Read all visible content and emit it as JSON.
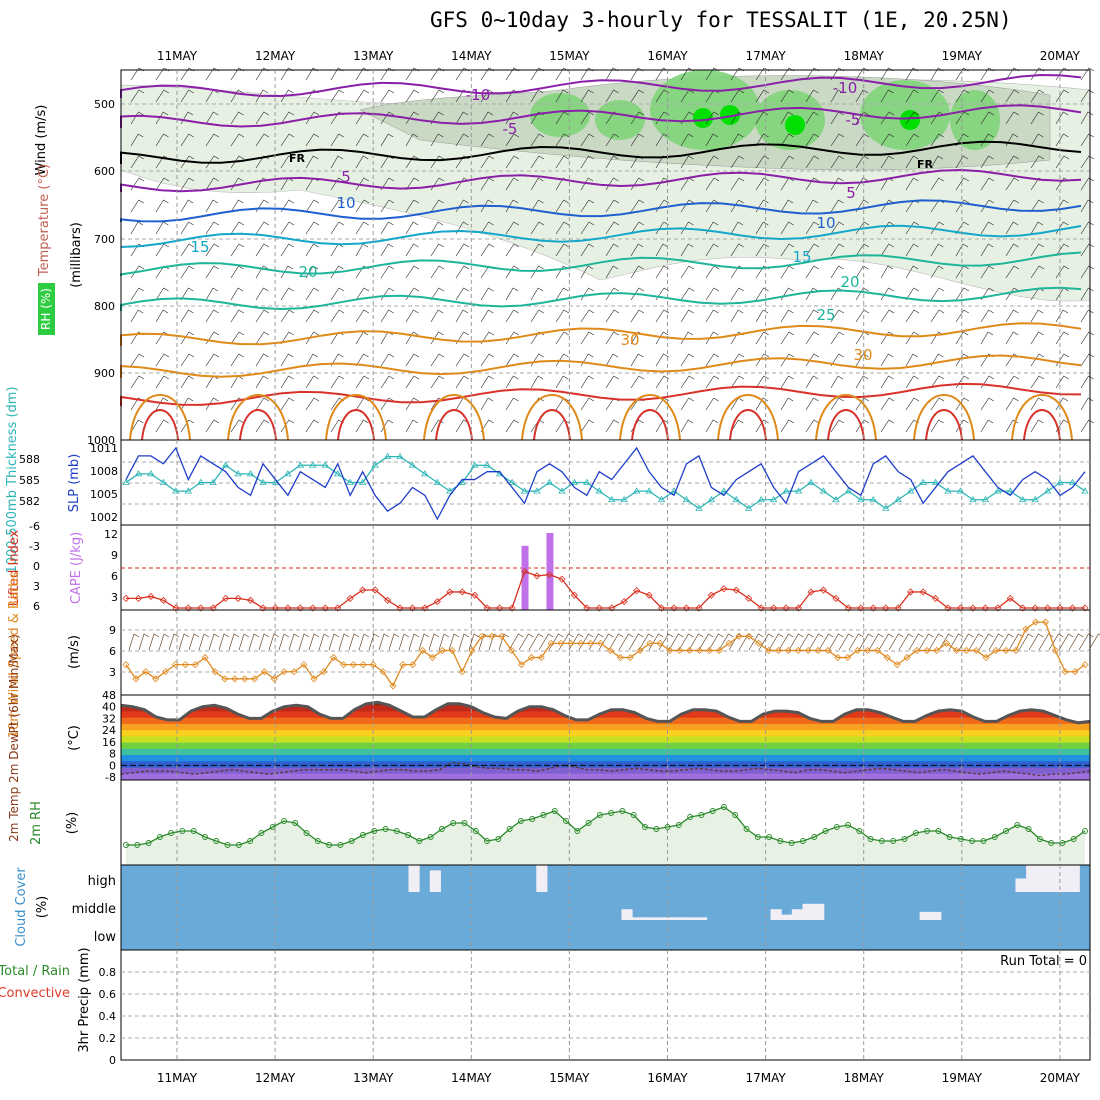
{
  "title": "GFS 0~10day 3-hourly for TESSALIT (1E, 20.25N)",
  "days": [
    "11MAY",
    "12MAY",
    "13MAY",
    "14MAY",
    "15MAY",
    "16MAY",
    "17MAY",
    "18MAY",
    "19MAY",
    "20MAY"
  ],
  "colors": {
    "rh_green": "#2ecc40",
    "temp_purple": "#8a1fa8",
    "temp_blue": "#1f5fd0",
    "temp_cyan": "#14a7c9",
    "temp_teal": "#1fb59a",
    "temp_orange": "#e08a1a",
    "temp_red": "#d8312b",
    "slp": "#1f3fc8",
    "thickness": "#2cb5b5",
    "lifted": "#d83020",
    "cape": "#c070e8",
    "wind10": "#e08a20",
    "rh2m": "#2a8a2a",
    "cloud": "#6aaad8",
    "cloud_fill": "#f2eef6"
  },
  "panels": {
    "upper": {
      "ylabel_wind": "Wind (m/s)",
      "ylabel_temp": "Temperature (°C)",
      "ylabel_rh": "RH (%)",
      "ylabel_unit": "(millibars)",
      "ticks": [
        "500",
        "600",
        "700",
        "800",
        "900",
        "1000"
      ],
      "contour_labels": [
        "-10",
        "-5",
        "FR",
        "5",
        "10",
        "15",
        "20",
        "25",
        "30",
        "-10",
        "-5",
        "FR",
        "5",
        "10",
        "15",
        "20",
        "30"
      ]
    },
    "slp": {
      "ylabel_left": "1000-500mb Thickness (dm)",
      "ylabel_right": "SLP (mb)",
      "left_ticks": [
        "588",
        "585",
        "582"
      ],
      "right_ticks": [
        "1011",
        "1008",
        "1005",
        "1002"
      ]
    },
    "cape": {
      "ylabel_left": "Lifted Index",
      "ylabel_right": "CAPE (J/kg)",
      "left_ticks": [
        "-6",
        "-3",
        "0",
        "3",
        "6"
      ],
      "right_ticks": [
        "12",
        "9",
        "6",
        "3"
      ]
    },
    "wind10": {
      "ylabel_left": "10m Wind Speed & Barbs",
      "ylabel_unit": "(m/s)",
      "ticks": [
        "9",
        "6",
        "3"
      ]
    },
    "temp2m": {
      "ylabel_left": "2m Temp 2m DewPt (6hr Min/Max)",
      "ylabel_unit": "(°C)",
      "ticks": [
        "48",
        "40",
        "32",
        "24",
        "16",
        "8",
        "0",
        "-8"
      ]
    },
    "rh2m": {
      "ylabel_left": "2m RH",
      "ylabel_unit": "(%)"
    },
    "cloud": {
      "ylabel_left": "Cloud Cover",
      "ylabel_unit": "(%)",
      "levels": [
        "high",
        "middle",
        "low"
      ]
    },
    "precip": {
      "ylabel_left": "3hr Precip (mm)",
      "ylabel_total": "Total / Rain",
      "ylabel_conv": "Convective",
      "ticks": [
        "0.8",
        "0.6",
        "0.4",
        "0.2",
        "0"
      ],
      "run_total": "Run Total = 0"
    }
  },
  "chart_data": [
    {
      "type": "line",
      "title": "SLP (mb)",
      "series": [
        {
          "name": "SLP (mb)",
          "values": [
            1007,
            1010,
            1010,
            1009,
            1011,
            1007,
            1010,
            1009,
            1008,
            1006,
            1005,
            1009,
            1007,
            1005,
            1008,
            1007,
            1006,
            1009,
            1005,
            1008,
            1005,
            1003,
            1004,
            1006,
            1005,
            1002,
            1005,
            1007,
            1007,
            1008,
            1008,
            1006,
            1004,
            1008,
            1009,
            1008,
            1006,
            1005,
            1008,
            1007,
            1009,
            1011,
            1008,
            1006,
            1005,
            1009,
            1010,
            1006,
            1005,
            1007,
            1008,
            1009,
            1006,
            1004,
            1008,
            1009,
            1010,
            1008,
            1006,
            1005,
            1009,
            1010,
            1008,
            1007,
            1004,
            1006,
            1008,
            1009,
            1010,
            1008,
            1006,
            1005,
            1007,
            1008,
            1007,
            1005,
            1006,
            1008
          ]
        },
        {
          "name": "1000-500mb Thickness (dm)",
          "values": [
            585,
            586,
            586,
            585,
            584,
            584,
            585,
            585,
            587,
            586,
            586,
            585,
            585,
            586,
            587,
            587,
            587,
            586,
            585,
            585,
            587,
            588,
            588,
            587,
            586,
            585,
            584,
            585,
            587,
            587,
            586,
            585,
            584,
            584,
            585,
            584,
            585,
            585,
            584,
            583,
            583,
            584,
            584,
            583,
            584,
            583,
            582,
            583,
            584,
            583,
            582,
            583,
            583,
            584,
            584,
            585,
            584,
            583,
            584,
            583,
            583,
            582,
            583,
            584,
            585,
            585,
            584,
            584,
            583,
            583,
            584,
            584,
            583,
            583,
            584,
            585,
            585,
            584
          ]
        }
      ],
      "ylim": [
        1002,
        1011
      ]
    },
    {
      "type": "line",
      "title": "Lifted Index / CAPE (J/kg)",
      "series": [
        {
          "name": "Lifted Index",
          "values": [
            4.5,
            4.5,
            4.2,
            4.8,
            6,
            6,
            6,
            6,
            4.5,
            4.5,
            4.8,
            6,
            6,
            6,
            6,
            6,
            6,
            6,
            4.5,
            3.2,
            3.2,
            4.8,
            6,
            6,
            6,
            5,
            3.5,
            3.5,
            4,
            6,
            6,
            6,
            0.3,
            1,
            0.8,
            1.5,
            4,
            6,
            6,
            6,
            5,
            3.3,
            4,
            6,
            6,
            6,
            6,
            4,
            3,
            3.2,
            4.5,
            6,
            6,
            6,
            6,
            3.5,
            3.2,
            4.5,
            6,
            6,
            6,
            6,
            6,
            3.5,
            3.5,
            4.5,
            6,
            6,
            6,
            6,
            6,
            4.5,
            6,
            6,
            6,
            6,
            6,
            6
          ]
        },
        {
          "name": "CAPE (J/kg)",
          "values": [
            0,
            0,
            0,
            0,
            0,
            0,
            0,
            0,
            0,
            0,
            0,
            0,
            0,
            0,
            0,
            0,
            0,
            0,
            0,
            0,
            0,
            0,
            0,
            0,
            0,
            0,
            0,
            0,
            0,
            0,
            0,
            0,
            10,
            0,
            12,
            0,
            0,
            0,
            0,
            0,
            0,
            0,
            0,
            0,
            0,
            0,
            0,
            0,
            0,
            0,
            0,
            0,
            0,
            0,
            0,
            0,
            0,
            0,
            0,
            0,
            0,
            0,
            0,
            0,
            0,
            0,
            0,
            0,
            0,
            0,
            0,
            0,
            0,
            0,
            0,
            0,
            0,
            0
          ]
        }
      ],
      "ylim": [
        6,
        -6
      ]
    },
    {
      "type": "line",
      "title": "10m Wind Speed (m/s)",
      "series": [
        {
          "name": "10m Wind Speed",
          "values": [
            4,
            2,
            3,
            2,
            3,
            4,
            4,
            4,
            5,
            3,
            2,
            2,
            2,
            2,
            3,
            2,
            3,
            3,
            4,
            2,
            3,
            5,
            4,
            4,
            4,
            4,
            3,
            1,
            4,
            4,
            6,
            5,
            6,
            6,
            3,
            6,
            8,
            8,
            8,
            6,
            4,
            5,
            5,
            7,
            7,
            7,
            7,
            7,
            7,
            6,
            5,
            5,
            6,
            7,
            7,
            6,
            6,
            6,
            6,
            6,
            6,
            7,
            8,
            8,
            7,
            6,
            6,
            6,
            6,
            6,
            6,
            6,
            5,
            5,
            6,
            6,
            6,
            5,
            4,
            5,
            6,
            6,
            6,
            7,
            6,
            6,
            6,
            5,
            6,
            6,
            6,
            9,
            10,
            10,
            6,
            3,
            3,
            4
          ]
        }
      ],
      "ylim": [
        0,
        11
      ]
    },
    {
      "type": "area",
      "title": "2m Temp / 2m DewPt (°C)",
      "series": [
        {
          "name": "2m Temp",
          "values": [
            41,
            40,
            38,
            33,
            31,
            31,
            37,
            40,
            41,
            39,
            35,
            32,
            32,
            37,
            40,
            41,
            40,
            35,
            32,
            32,
            38,
            42,
            43,
            41,
            37,
            33,
            33,
            38,
            42,
            42,
            40,
            36,
            33,
            32,
            37,
            40,
            40,
            38,
            34,
            31,
            31,
            35,
            38,
            38,
            36,
            32,
            30,
            30,
            35,
            38,
            38,
            37,
            33,
            30,
            30,
            35,
            37,
            37,
            36,
            32,
            30,
            30,
            35,
            38,
            38,
            36,
            33,
            30,
            30,
            34,
            37,
            38,
            37,
            33,
            30,
            30,
            34,
            37,
            38,
            37,
            34,
            31,
            29,
            30
          ]
        },
        {
          "name": "2m DewPt",
          "values": [
            -6,
            -5,
            -4,
            -4,
            -4,
            -5,
            -6,
            -5,
            -4,
            -3,
            -4,
            -5,
            -6,
            -5,
            -4,
            -3,
            -3,
            -3,
            -3,
            -4,
            -5,
            -4,
            -3,
            -3,
            -4,
            -4,
            -3,
            2,
            1,
            -1,
            -2,
            -2,
            -3,
            -3,
            -4,
            -2,
            0,
            -1,
            -3,
            -3,
            -4,
            -3,
            -2,
            -3,
            -4,
            -4,
            -3,
            -2,
            -3,
            -4,
            -4,
            -3,
            -2,
            -3,
            -4,
            -5,
            -3,
            -3,
            -4,
            -5,
            -4,
            -3,
            -2,
            -3,
            -4,
            -5,
            -4,
            -3,
            -4,
            -5,
            -6,
            -5,
            -4,
            -5,
            -6,
            -7,
            -6,
            -6,
            -5,
            -4
          ]
        }
      ],
      "ylim": [
        -10,
        48
      ]
    },
    {
      "type": "line",
      "title": "2m RH (%)",
      "series": [
        {
          "name": "2m RH",
          "values": [
            9,
            9,
            10,
            13,
            15,
            16,
            16,
            13,
            11,
            9,
            9,
            11,
            15,
            18,
            21,
            20,
            15,
            11,
            9,
            9,
            11,
            14,
            16,
            17,
            16,
            14,
            11,
            13,
            17,
            20,
            20,
            16,
            11,
            12,
            17,
            21,
            22,
            24,
            26,
            21,
            16,
            20,
            24,
            25,
            26,
            24,
            18,
            17,
            18,
            19,
            23,
            24,
            26,
            28,
            24,
            17,
            13,
            13,
            11,
            10,
            11,
            13,
            16,
            18,
            19,
            16,
            12,
            11,
            11,
            12,
            15,
            16,
            16,
            13,
            12,
            11,
            11,
            13,
            16,
            19,
            17,
            12,
            10,
            10,
            12,
            16
          ]
        }
      ],
      "ylim": [
        0,
        40
      ]
    },
    {
      "type": "bar",
      "title": "Cloud Cover (%)",
      "series": [
        {
          "name": "high",
          "values": [
            0,
            0,
            0,
            0,
            0,
            0,
            0,
            0,
            0,
            0,
            0,
            0,
            0,
            0,
            0,
            0,
            0,
            0,
            0,
            0,
            0,
            0,
            0,
            0,
            0,
            0,
            0,
            100,
            0,
            80,
            0,
            0,
            0,
            0,
            0,
            0,
            0,
            0,
            0,
            100,
            0,
            0,
            0,
            0,
            0,
            0,
            0,
            0,
            0,
            0,
            0,
            0,
            0,
            0,
            0,
            0,
            0,
            0,
            0,
            0,
            0,
            0,
            0,
            0,
            0,
            0,
            0,
            0,
            0,
            0,
            0,
            0,
            0,
            0,
            0,
            0,
            0,
            0,
            0,
            0,
            0,
            0,
            0,
            0,
            50,
            100,
            100,
            100,
            100,
            100,
            0
          ]
        },
        {
          "name": "middle",
          "values": [
            0,
            0,
            0,
            0,
            0,
            0,
            0,
            0,
            0,
            0,
            0,
            0,
            0,
            0,
            0,
            0,
            0,
            0,
            0,
            0,
            0,
            0,
            0,
            0,
            0,
            0,
            0,
            0,
            0,
            0,
            0,
            0,
            0,
            0,
            0,
            0,
            0,
            0,
            0,
            0,
            0,
            0,
            0,
            0,
            0,
            0,
            0,
            40,
            10,
            10,
            10,
            10,
            10,
            10,
            10,
            0,
            0,
            0,
            0,
            0,
            0,
            40,
            20,
            40,
            60,
            60,
            0,
            0,
            0,
            0,
            0,
            0,
            0,
            0,
            0,
            30,
            30,
            0,
            0,
            0,
            0,
            0,
            0,
            0,
            0,
            0,
            0,
            0,
            0,
            0,
            0
          ]
        }
      ]
    }
  ]
}
